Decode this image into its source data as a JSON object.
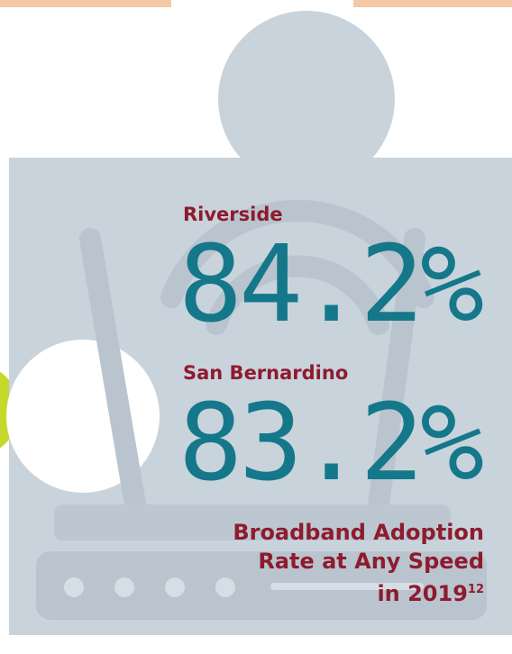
{
  "stats": [
    {
      "label": "Riverside",
      "value": "84.2%"
    },
    {
      "label": "San Bernardino",
      "value": "83.2%"
    }
  ],
  "caption": {
    "lines": [
      "Broadband Adoption",
      "Rate at Any Speed",
      "in 2019"
    ],
    "footnote": "12"
  }
}
